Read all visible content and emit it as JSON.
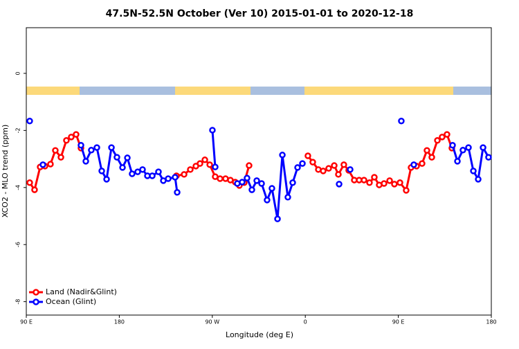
{
  "chart_data": {
    "type": "line",
    "title": "47.5N-52.5N October (Ver 10)   2015-01-01 to 2020-12-18",
    "xlabel": "Longitude (deg E)",
    "ylabel": "XCO2 - MLO trend (ppm)",
    "xlim": [
      90,
      540
    ],
    "ylim": [
      -8.47,
      1.6
    ],
    "xticks": [
      {
        "value": 90,
        "label": "90 E"
      },
      180,
      {
        "value": 270,
        "label": "90 W"
      },
      {
        "value": 360,
        "label": "0"
      },
      {
        "value": 450,
        "label": "90 E"
      },
      {
        "value": 540,
        "label": "180"
      }
    ],
    "yticks": [
      0,
      -2,
      -4,
      -6,
      -8
    ],
    "legend": "bottom-left",
    "series": [
      {
        "name": "Land (Nadir&Glint)",
        "color": "#ff0000",
        "x": [
          93.3,
          98.0,
          103.4,
          108.1,
          113.4,
          118.1,
          123.5,
          128.8,
          133.5,
          138.2,
          142.9,
          190,
          235.3,
          242.7,
          248.7,
          254.1,
          258.1,
          262.8,
          267.5,
          272.8,
          277.5,
          282.8,
          287.5,
          292.2,
          296.2,
          300.9,
          305.6,
          340,
          362.5,
          367.2,
          372.6,
          377.3,
          382.6,
          388.0,
          392.0,
          397.3,
          402.0,
          407.4,
          412.1,
          416.8,
          422.1,
          426.8,
          431.5,
          436.2,
          441.6,
          446.2,
          451.6,
          457.6,
          462.3,
          467.7,
          473.0,
          477.7,
          482.4,
          487.8,
          492.4,
          497.1,
          501.8
        ],
        "values": [
          -3.83,
          -4.08,
          -3.28,
          -3.25,
          -3.18,
          -2.7,
          -2.94,
          -2.35,
          -2.23,
          -2.14,
          -2.62,
          null,
          -3.59,
          -3.54,
          -3.37,
          -3.25,
          -3.16,
          -3.03,
          -3.2,
          -3.62,
          -3.69,
          -3.69,
          -3.74,
          -3.81,
          -3.93,
          -3.83,
          -3.23,
          null,
          -2.89,
          -3.11,
          -3.37,
          -3.42,
          -3.33,
          -3.23,
          -3.54,
          -3.2,
          -3.4,
          -3.74,
          -3.74,
          -3.74,
          -3.83,
          -3.64,
          -3.91,
          -3.86,
          -3.76,
          -3.88,
          -3.83,
          -4.1,
          -3.3,
          -3.25,
          -3.16,
          -2.7,
          -2.94,
          -2.35,
          -2.23,
          -2.14,
          -2.62
        ]
      },
      {
        "name": "Ocean (Glint)",
        "color": "#0000ff",
        "x": [
          93.3,
          100,
          106.1,
          120,
          142.9,
          147.6,
          152.9,
          158.3,
          163.0,
          167.7,
          172.4,
          177.7,
          183.1,
          187.8,
          192.4,
          197.8,
          202.5,
          207.2,
          211.9,
          217.9,
          222.6,
          227.3,
          234.0,
          236.0,
          250,
          270.1,
          272.8,
          285,
          294.2,
          298.9,
          303.6,
          308.3,
          313.0,
          317.7,
          323.0,
          327.7,
          333.1,
          337.8,
          343.1,
          347.8,
          352.5,
          357.2,
          375,
          392.7,
          398,
          403.4,
          430,
          452.9,
          460,
          465.0,
          485,
          502.5,
          507.2,
          512.5,
          517.9,
          522.6,
          527.3,
          532.0,
          537.3
        ],
        "values": [
          -1.67,
          null,
          -3.2,
          null,
          -2.52,
          -3.08,
          -2.69,
          -2.6,
          -3.42,
          -3.71,
          -2.6,
          -2.94,
          -3.3,
          -2.96,
          -3.52,
          -3.45,
          -3.37,
          -3.59,
          -3.59,
          -3.45,
          -3.76,
          -3.69,
          -3.64,
          -4.17,
          null,
          -1.99,
          -3.28,
          null,
          -3.86,
          -3.81,
          -3.67,
          -4.08,
          -3.76,
          -3.86,
          -4.44,
          -4.03,
          -5.1,
          -2.86,
          -4.34,
          -3.83,
          -3.3,
          -3.16,
          null,
          -3.88,
          null,
          -3.37,
          null,
          -1.67,
          null,
          -3.2,
          null,
          -2.52,
          -3.08,
          -2.69,
          -2.6,
          -3.42,
          -3.71,
          -2.6,
          -2.94
        ]
      }
    ]
  }
}
